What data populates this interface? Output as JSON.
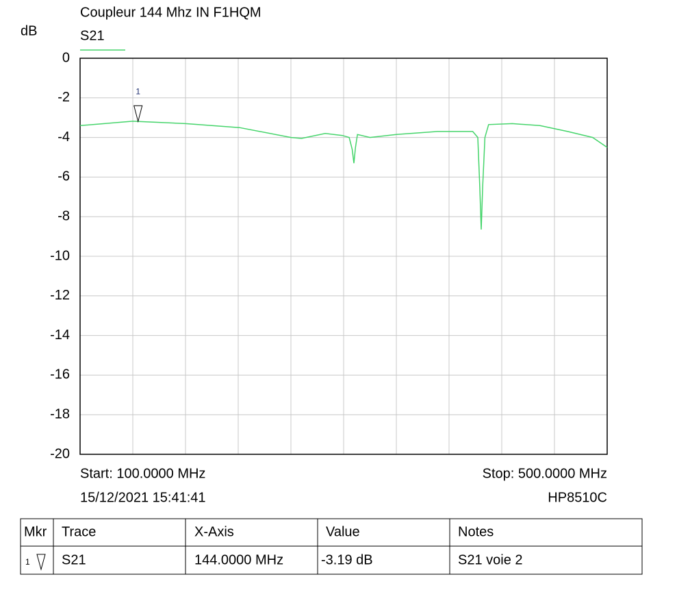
{
  "chart_data": {
    "type": "line",
    "title": "Coupleur 144 Mhz IN F1HQM",
    "y_label": "dB",
    "xlim": [
      100,
      500
    ],
    "ylim": [
      -20,
      0
    ],
    "yticks": [
      0,
      -2,
      -4,
      -6,
      -8,
      -10,
      -12,
      -14,
      -16,
      -18,
      -20
    ],
    "grid": true,
    "series": [
      {
        "name": "S21",
        "color": "#44d46a",
        "x": [
          100,
          140,
          144,
          180,
          221,
          260,
          268,
          286,
          299,
          304.2,
          306.5,
          307.8,
          309,
          310.5,
          320,
          340,
          371,
          398,
          401.8,
          403.3,
          404.4,
          405.5,
          407.2,
          410,
          428,
          449,
          470,
          489,
          500
        ],
        "values": [
          -3.4,
          -3.18,
          -3.19,
          -3.3,
          -3.5,
          -4.0,
          -4.05,
          -3.8,
          -3.9,
          -4.0,
          -4.6,
          -5.3,
          -4.5,
          -3.85,
          -4.0,
          -3.85,
          -3.7,
          -3.7,
          -4.0,
          -6.5,
          -8.65,
          -6.5,
          -4.0,
          -3.35,
          -3.3,
          -3.4,
          -3.7,
          -4.0,
          -4.5
        ]
      }
    ],
    "markers": [
      {
        "label": "1",
        "x": 144,
        "y": -3.19
      }
    ],
    "start_label": "Start: 100.0000 MHz",
    "stop_label": "Stop: 500.0000 MHz",
    "timestamp": "15/12/2021 15:41:41",
    "instrument": "HP8510C"
  },
  "table": {
    "headers": [
      "Mkr",
      "Trace",
      "X-Axis",
      "Value",
      "Notes"
    ],
    "rows": [
      [
        "1",
        "S21",
        "144.0000 MHz",
        "-3.19 dB",
        "S21 voie 2"
      ]
    ]
  }
}
